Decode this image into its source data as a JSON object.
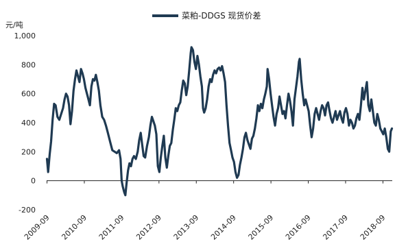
{
  "chart_data": {
    "type": "line",
    "title": "",
    "legend_position": "top-center",
    "ylabel": "元/吨",
    "xlabel": "",
    "ylim": [
      -200,
      1000
    ],
    "yticks": [
      -200,
      0,
      200,
      400,
      600,
      800,
      1000
    ],
    "ytick_labels": [
      "-200",
      "0",
      "200",
      "400",
      "600",
      "800",
      "1,000"
    ],
    "xlim": [
      2009.66,
      2018.92
    ],
    "xticks": [
      2009.67,
      2010.67,
      2011.67,
      2012.67,
      2013.67,
      2014.67,
      2015.67,
      2016.67,
      2017.67,
      2018.67
    ],
    "xtick_labels": [
      "2009-09",
      "2010-09",
      "2011-09",
      "2012-09",
      "2013-09",
      "2014-09",
      "2015-09",
      "2016-09",
      "2017-09",
      "2018-09"
    ],
    "grid": false,
    "series": [
      {
        "name": "菜粕-DDGS 现货价差",
        "color": "#1f3a52",
        "points": [
          [
            2009.67,
            150
          ],
          [
            2009.7,
            60
          ],
          [
            2009.74,
            180
          ],
          [
            2009.78,
            270
          ],
          [
            2009.82,
            420
          ],
          [
            2009.86,
            530
          ],
          [
            2009.9,
            520
          ],
          [
            2009.95,
            440
          ],
          [
            2010.0,
            420
          ],
          [
            2010.05,
            460
          ],
          [
            2010.1,
            500
          ],
          [
            2010.14,
            560
          ],
          [
            2010.18,
            600
          ],
          [
            2010.22,
            580
          ],
          [
            2010.26,
            520
          ],
          [
            2010.3,
            390
          ],
          [
            2010.34,
            480
          ],
          [
            2010.38,
            620
          ],
          [
            2010.42,
            700
          ],
          [
            2010.46,
            760
          ],
          [
            2010.5,
            720
          ],
          [
            2010.54,
            680
          ],
          [
            2010.58,
            770
          ],
          [
            2010.62,
            740
          ],
          [
            2010.66,
            700
          ],
          [
            2010.7,
            640
          ],
          [
            2010.74,
            600
          ],
          [
            2010.78,
            560
          ],
          [
            2010.82,
            520
          ],
          [
            2010.86,
            650
          ],
          [
            2010.9,
            700
          ],
          [
            2010.94,
            690
          ],
          [
            2010.98,
            730
          ],
          [
            2011.02,
            680
          ],
          [
            2011.06,
            620
          ],
          [
            2011.1,
            520
          ],
          [
            2011.15,
            440
          ],
          [
            2011.2,
            420
          ],
          [
            2011.25,
            380
          ],
          [
            2011.3,
            330
          ],
          [
            2011.36,
            270
          ],
          [
            2011.42,
            210
          ],
          [
            2011.48,
            200
          ],
          [
            2011.54,
            190
          ],
          [
            2011.6,
            210
          ],
          [
            2011.64,
            150
          ],
          [
            2011.67,
            0
          ],
          [
            2011.7,
            -40
          ],
          [
            2011.74,
            -80
          ],
          [
            2011.77,
            -100
          ],
          [
            2011.8,
            -20
          ],
          [
            2011.84,
            70
          ],
          [
            2011.88,
            120
          ],
          [
            2011.92,
            100
          ],
          [
            2011.96,
            150
          ],
          [
            2012.0,
            170
          ],
          [
            2012.05,
            150
          ],
          [
            2012.1,
            200
          ],
          [
            2012.14,
            280
          ],
          [
            2012.18,
            330
          ],
          [
            2012.22,
            250
          ],
          [
            2012.26,
            170
          ],
          [
            2012.3,
            160
          ],
          [
            2012.35,
            240
          ],
          [
            2012.4,
            300
          ],
          [
            2012.44,
            380
          ],
          [
            2012.48,
            440
          ],
          [
            2012.52,
            410
          ],
          [
            2012.56,
            380
          ],
          [
            2012.6,
            320
          ],
          [
            2012.64,
            100
          ],
          [
            2012.68,
            60
          ],
          [
            2012.72,
            160
          ],
          [
            2012.76,
            240
          ],
          [
            2012.8,
            310
          ],
          [
            2012.84,
            160
          ],
          [
            2012.88,
            90
          ],
          [
            2012.92,
            170
          ],
          [
            2012.96,
            240
          ],
          [
            2013.0,
            260
          ],
          [
            2013.04,
            350
          ],
          [
            2013.08,
            420
          ],
          [
            2013.12,
            500
          ],
          [
            2013.16,
            480
          ],
          [
            2013.2,
            520
          ],
          [
            2013.24,
            540
          ],
          [
            2013.28,
            620
          ],
          [
            2013.32,
            690
          ],
          [
            2013.36,
            670
          ],
          [
            2013.4,
            590
          ],
          [
            2013.44,
            650
          ],
          [
            2013.48,
            760
          ],
          [
            2013.52,
            880
          ],
          [
            2013.54,
            920
          ],
          [
            2013.58,
            900
          ],
          [
            2013.62,
            820
          ],
          [
            2013.66,
            770
          ],
          [
            2013.7,
            860
          ],
          [
            2013.74,
            800
          ],
          [
            2013.78,
            720
          ],
          [
            2013.82,
            650
          ],
          [
            2013.85,
            500
          ],
          [
            2013.88,
            470
          ],
          [
            2013.92,
            500
          ],
          [
            2013.96,
            560
          ],
          [
            2014.0,
            650
          ],
          [
            2014.04,
            700
          ],
          [
            2014.08,
            680
          ],
          [
            2014.12,
            730
          ],
          [
            2014.16,
            760
          ],
          [
            2014.2,
            740
          ],
          [
            2014.24,
            770
          ],
          [
            2014.28,
            780
          ],
          [
            2014.32,
            760
          ],
          [
            2014.36,
            790
          ],
          [
            2014.4,
            740
          ],
          [
            2014.44,
            680
          ],
          [
            2014.48,
            520
          ],
          [
            2014.52,
            380
          ],
          [
            2014.56,
            260
          ],
          [
            2014.6,
            210
          ],
          [
            2014.64,
            160
          ],
          [
            2014.68,
            130
          ],
          [
            2014.72,
            60
          ],
          [
            2014.76,
            20
          ],
          [
            2014.8,
            40
          ],
          [
            2014.84,
            110
          ],
          [
            2014.88,
            160
          ],
          [
            2014.92,
            220
          ],
          [
            2014.96,
            300
          ],
          [
            2015.0,
            330
          ],
          [
            2015.04,
            280
          ],
          [
            2015.08,
            250
          ],
          [
            2015.12,
            220
          ],
          [
            2015.16,
            290
          ],
          [
            2015.2,
            310
          ],
          [
            2015.24,
            360
          ],
          [
            2015.28,
            430
          ],
          [
            2015.32,
            520
          ],
          [
            2015.36,
            480
          ],
          [
            2015.4,
            530
          ],
          [
            2015.44,
            500
          ],
          [
            2015.48,
            560
          ],
          [
            2015.52,
            600
          ],
          [
            2015.56,
            650
          ],
          [
            2015.58,
            770
          ],
          [
            2015.62,
            700
          ],
          [
            2015.66,
            600
          ],
          [
            2015.7,
            520
          ],
          [
            2015.74,
            440
          ],
          [
            2015.78,
            380
          ],
          [
            2015.82,
            460
          ],
          [
            2015.86,
            500
          ],
          [
            2015.9,
            580
          ],
          [
            2015.94,
            520
          ],
          [
            2015.98,
            460
          ],
          [
            2016.02,
            480
          ],
          [
            2016.06,
            430
          ],
          [
            2016.1,
            520
          ],
          [
            2016.14,
            600
          ],
          [
            2016.18,
            550
          ],
          [
            2016.22,
            480
          ],
          [
            2016.26,
            380
          ],
          [
            2016.3,
            560
          ],
          [
            2016.34,
            640
          ],
          [
            2016.38,
            720
          ],
          [
            2016.42,
            820
          ],
          [
            2016.44,
            840
          ],
          [
            2016.48,
            700
          ],
          [
            2016.52,
            600
          ],
          [
            2016.56,
            520
          ],
          [
            2016.6,
            560
          ],
          [
            2016.64,
            520
          ],
          [
            2016.68,
            480
          ],
          [
            2016.72,
            380
          ],
          [
            2016.76,
            300
          ],
          [
            2016.8,
            360
          ],
          [
            2016.84,
            460
          ],
          [
            2016.88,
            500
          ],
          [
            2016.92,
            460
          ],
          [
            2016.96,
            420
          ],
          [
            2017.0,
            480
          ],
          [
            2017.04,
            520
          ],
          [
            2017.08,
            500
          ],
          [
            2017.12,
            450
          ],
          [
            2017.16,
            520
          ],
          [
            2017.2,
            540
          ],
          [
            2017.24,
            480
          ],
          [
            2017.28,
            430
          ],
          [
            2017.32,
            400
          ],
          [
            2017.36,
            440
          ],
          [
            2017.4,
            480
          ],
          [
            2017.44,
            420
          ],
          [
            2017.48,
            450
          ],
          [
            2017.52,
            480
          ],
          [
            2017.56,
            430
          ],
          [
            2017.6,
            400
          ],
          [
            2017.64,
            470
          ],
          [
            2017.68,
            500
          ],
          [
            2017.72,
            460
          ],
          [
            2017.76,
            380
          ],
          [
            2017.8,
            420
          ],
          [
            2017.84,
            400
          ],
          [
            2017.88,
            360
          ],
          [
            2017.92,
            380
          ],
          [
            2017.96,
            430
          ],
          [
            2018.0,
            460
          ],
          [
            2018.04,
            420
          ],
          [
            2018.08,
            520
          ],
          [
            2018.12,
            640
          ],
          [
            2018.16,
            560
          ],
          [
            2018.2,
            620
          ],
          [
            2018.24,
            680
          ],
          [
            2018.28,
            520
          ],
          [
            2018.32,
            480
          ],
          [
            2018.36,
            560
          ],
          [
            2018.4,
            480
          ],
          [
            2018.44,
            400
          ],
          [
            2018.48,
            380
          ],
          [
            2018.52,
            460
          ],
          [
            2018.56,
            420
          ],
          [
            2018.6,
            360
          ],
          [
            2018.64,
            340
          ],
          [
            2018.68,
            320
          ],
          [
            2018.72,
            360
          ],
          [
            2018.76,
            300
          ],
          [
            2018.8,
            220
          ],
          [
            2018.84,
            200
          ],
          [
            2018.88,
            340
          ],
          [
            2018.91,
            360
          ]
        ]
      }
    ]
  }
}
